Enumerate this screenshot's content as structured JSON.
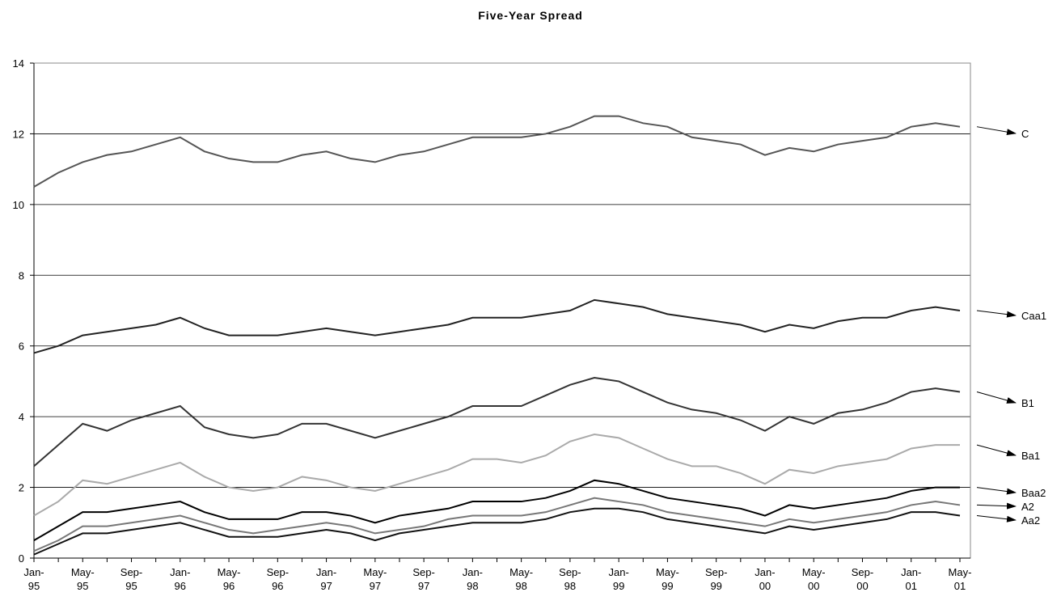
{
  "chart_data": {
    "type": "line",
    "title": "Five-Year Spread",
    "categories": [
      "Jan-95",
      null,
      "May-95",
      null,
      "Sep-95",
      null,
      "Jan-96",
      null,
      "May-96",
      null,
      "Sep-96",
      null,
      "Jan-97",
      null,
      "May-97",
      null,
      "Sep-97",
      null,
      "Jan-98",
      null,
      "May-98",
      null,
      "Sep-98",
      null,
      "Jan-99",
      null,
      "May-99",
      null,
      "Sep-99",
      null,
      "Jan-00",
      null,
      "May-00",
      null,
      "Sep-00",
      null,
      "Jan-01",
      null,
      "May-01"
    ],
    "series": [
      {
        "name": "C",
        "color": "#555555",
        "values": [
          10.5,
          10.9,
          11.2,
          11.4,
          11.5,
          11.7,
          11.9,
          11.5,
          11.3,
          11.2,
          11.2,
          11.4,
          11.5,
          11.3,
          11.2,
          11.4,
          11.5,
          11.7,
          11.9,
          11.9,
          11.9,
          12.0,
          12.2,
          12.5,
          12.5,
          12.3,
          12.2,
          11.9,
          11.8,
          11.7,
          11.4,
          11.6,
          11.5,
          11.7,
          11.8,
          11.9,
          12.2,
          12.3,
          12.2
        ]
      },
      {
        "name": "Caa1",
        "color": "#222222",
        "values": [
          5.8,
          6.0,
          6.3,
          6.4,
          6.5,
          6.6,
          6.8,
          6.5,
          6.3,
          6.3,
          6.3,
          6.4,
          6.5,
          6.4,
          6.3,
          6.4,
          6.5,
          6.6,
          6.8,
          6.8,
          6.8,
          6.9,
          7.0,
          7.3,
          7.2,
          7.1,
          6.9,
          6.8,
          6.7,
          6.6,
          6.4,
          6.6,
          6.5,
          6.7,
          6.8,
          6.8,
          7.0,
          7.1,
          7.0
        ]
      },
      {
        "name": "B1",
        "color": "#333333",
        "values": [
          2.6,
          3.2,
          3.8,
          3.6,
          3.9,
          4.1,
          4.3,
          3.7,
          3.5,
          3.4,
          3.5,
          3.8,
          3.8,
          3.6,
          3.4,
          3.6,
          3.8,
          4.0,
          4.3,
          4.3,
          4.3,
          4.6,
          4.9,
          5.1,
          5.0,
          4.7,
          4.4,
          4.2,
          4.1,
          3.9,
          3.6,
          4.0,
          3.8,
          4.1,
          4.2,
          4.4,
          4.7,
          4.8,
          4.7
        ]
      },
      {
        "name": "Ba1",
        "color": "#aaaaaa",
        "values": [
          1.2,
          1.6,
          2.2,
          2.1,
          2.3,
          2.5,
          2.7,
          2.3,
          2.0,
          1.9,
          2.0,
          2.3,
          2.2,
          2.0,
          1.9,
          2.1,
          2.3,
          2.5,
          2.8,
          2.8,
          2.7,
          2.9,
          3.3,
          3.5,
          3.4,
          3.1,
          2.8,
          2.6,
          2.6,
          2.4,
          2.1,
          2.5,
          2.4,
          2.6,
          2.7,
          2.8,
          3.1,
          3.2,
          3.2
        ]
      },
      {
        "name": "Baa2",
        "color": "#000000",
        "values": [
          0.5,
          0.9,
          1.3,
          1.3,
          1.4,
          1.5,
          1.6,
          1.3,
          1.1,
          1.1,
          1.1,
          1.3,
          1.3,
          1.2,
          1.0,
          1.2,
          1.3,
          1.4,
          1.6,
          1.6,
          1.6,
          1.7,
          1.9,
          2.2,
          2.1,
          1.9,
          1.7,
          1.6,
          1.5,
          1.4,
          1.2,
          1.5,
          1.4,
          1.5,
          1.6,
          1.7,
          1.9,
          2.0,
          2.0
        ]
      },
      {
        "name": "A2",
        "color": "#777777",
        "values": [
          0.2,
          0.5,
          0.9,
          0.9,
          1.0,
          1.1,
          1.2,
          1.0,
          0.8,
          0.7,
          0.8,
          0.9,
          1.0,
          0.9,
          0.7,
          0.8,
          0.9,
          1.1,
          1.2,
          1.2,
          1.2,
          1.3,
          1.5,
          1.7,
          1.6,
          1.5,
          1.3,
          1.2,
          1.1,
          1.0,
          0.9,
          1.1,
          1.0,
          1.1,
          1.2,
          1.3,
          1.5,
          1.6,
          1.5
        ]
      },
      {
        "name": "Aa2",
        "color": "#111111",
        "values": [
          0.1,
          0.4,
          0.7,
          0.7,
          0.8,
          0.9,
          1.0,
          0.8,
          0.6,
          0.6,
          0.6,
          0.7,
          0.8,
          0.7,
          0.5,
          0.7,
          0.8,
          0.9,
          1.0,
          1.0,
          1.0,
          1.1,
          1.3,
          1.4,
          1.4,
          1.3,
          1.1,
          1.0,
          0.9,
          0.8,
          0.7,
          0.9,
          0.8,
          0.9,
          1.0,
          1.1,
          1.3,
          1.3,
          1.2
        ]
      }
    ],
    "ylim": [
      0,
      14
    ],
    "yticks": [
      0,
      2,
      4,
      6,
      8,
      10,
      12,
      14
    ],
    "grid": true
  }
}
